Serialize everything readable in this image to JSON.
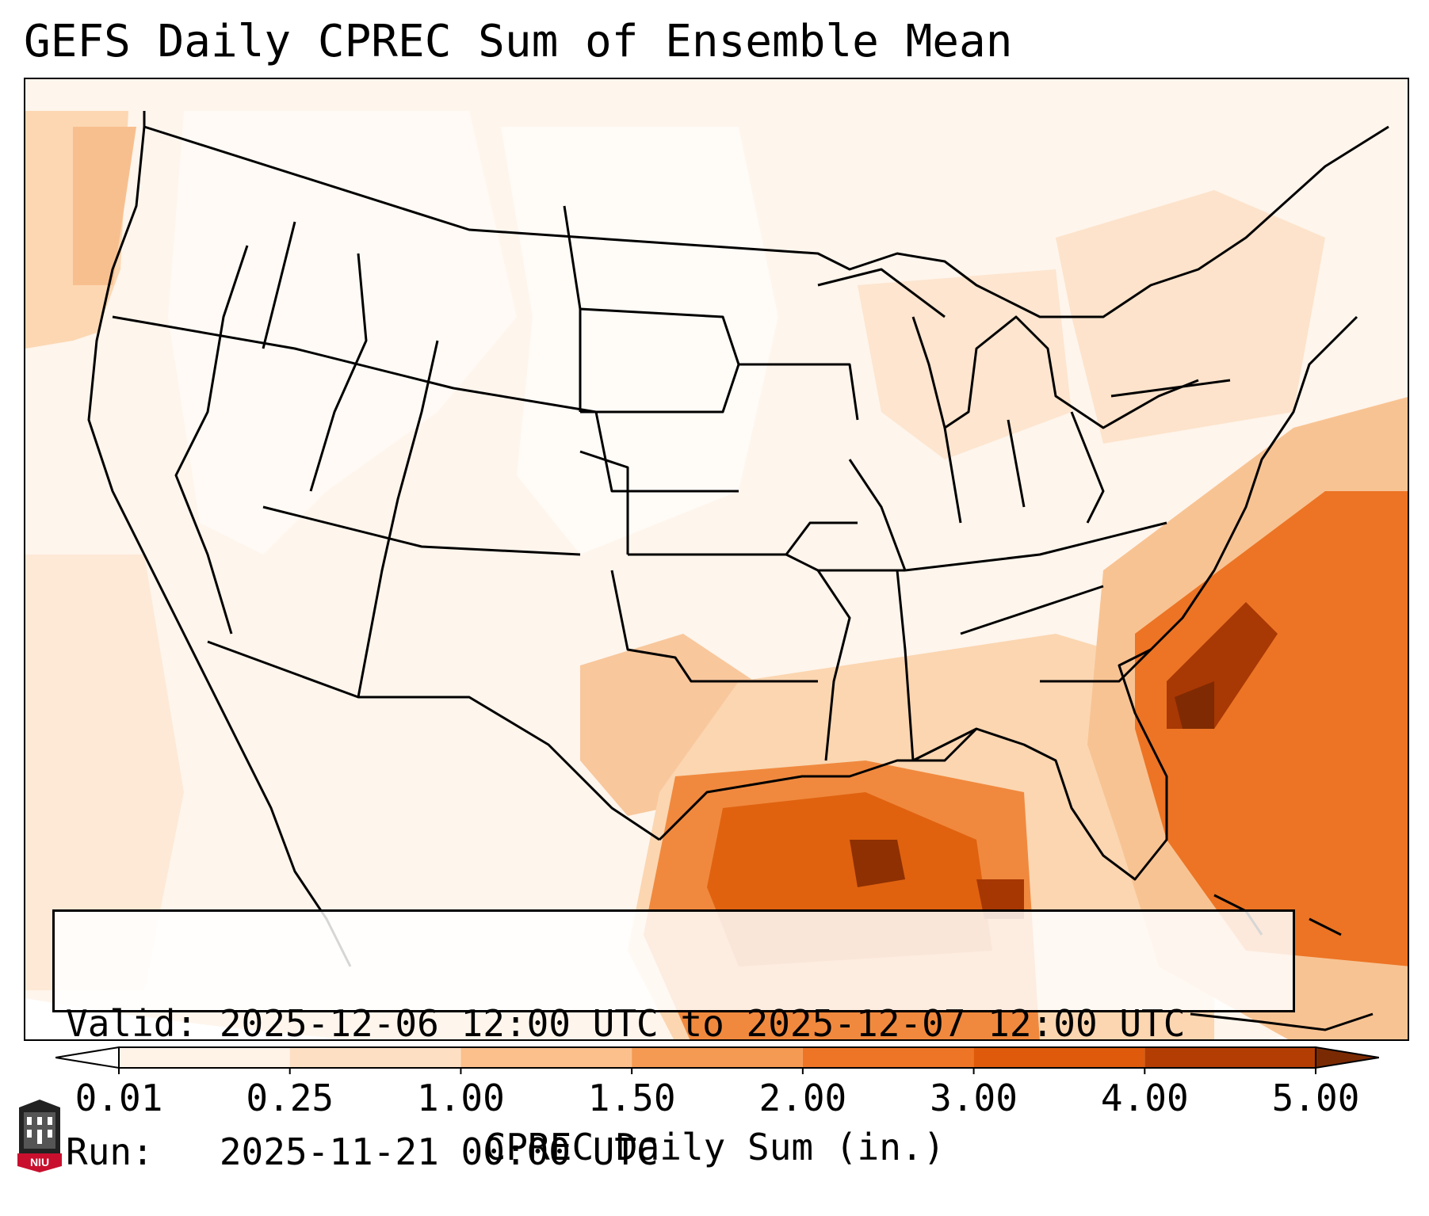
{
  "title": "GEFS Daily CPREC Sum of Ensemble Mean",
  "info": {
    "valid_line": "Valid: 2025-12-06 12:00 UTC to 2025-12-07 12:00 UTC",
    "run_line": "Run:   2025-11-21 00:00 UTC"
  },
  "colorbar": {
    "label": "CPREC Daily Sum (in.)",
    "ticks": [
      "0.01",
      "0.25",
      "1.00",
      "1.50",
      "2.00",
      "3.00",
      "4.00",
      "5.00"
    ],
    "colors": [
      "#fff3e8",
      "#fde0c4",
      "#fbc08c",
      "#f59a52",
      "#ee7526",
      "#df5a0b",
      "#b43d04",
      "#8a2f02"
    ],
    "under_color": "#ffffff",
    "over_color": "#7a2a02"
  },
  "logo": {
    "text": "NIU",
    "icon": "niu-castle-icon"
  },
  "map_colors": {
    "land_outline": "#000000",
    "ocean_fill": "#ffffff"
  }
}
